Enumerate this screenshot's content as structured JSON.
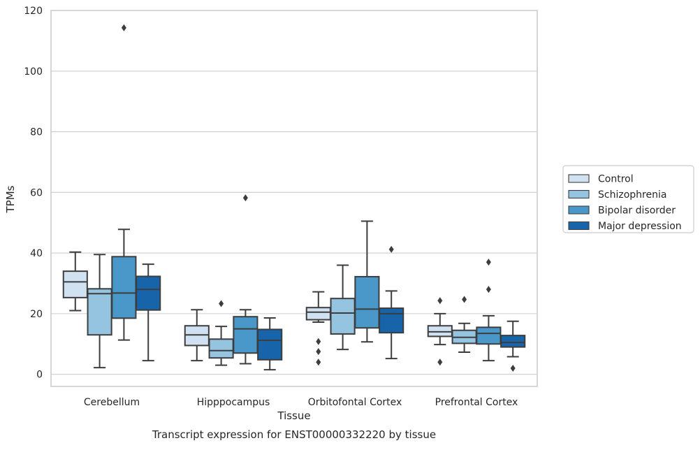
{
  "chart_data": {
    "type": "box",
    "title": "",
    "caption": "Transcript expression for ENST00000332220 by tissue",
    "xlabel": "Tissue",
    "ylabel": "TPMs",
    "ylim": [
      -4,
      120
    ],
    "yticks": [
      0,
      20,
      40,
      60,
      80,
      100,
      120
    ],
    "grid": "horizontal",
    "legend_position": "right, outside",
    "categories": [
      "Cerebellum",
      "Hipppocampus",
      "Orbitofontal Cortex",
      "Prefrontal Cortex"
    ],
    "series": [
      {
        "name": "Control",
        "color": "#d0e1f2",
        "boxes": [
          {
            "whislo": 21,
            "q1": 25.3,
            "med": 30.5,
            "q3": 34,
            "whishi": 40.3,
            "fliers": []
          },
          {
            "whislo": 4.5,
            "q1": 9.5,
            "med": 13,
            "q3": 16,
            "whishi": 21.3,
            "fliers": []
          },
          {
            "whislo": 17.2,
            "q1": 18,
            "med": 20.5,
            "q3": 22,
            "whishi": 27.2,
            "fliers": [
              10.8,
              7.5,
              4
            ]
          },
          {
            "whislo": 9.8,
            "q1": 12.5,
            "med": 14,
            "q3": 16,
            "whishi": 20,
            "fliers": [
              24.3,
              4
            ]
          }
        ]
      },
      {
        "name": "Schizophrenia",
        "color": "#94c4df",
        "boxes": [
          {
            "whislo": 2.2,
            "q1": 13,
            "med": 26.6,
            "q3": 28.2,
            "whishi": 39.5,
            "fliers": []
          },
          {
            "whislo": 3,
            "q1": 5.4,
            "med": 7.8,
            "q3": 11.6,
            "whishi": 15.8,
            "fliers": [
              23.3
            ]
          },
          {
            "whislo": 8.2,
            "q1": 13.3,
            "med": 20.2,
            "q3": 25,
            "whishi": 36,
            "fliers": []
          },
          {
            "whislo": 7.3,
            "q1": 10.2,
            "med": 12.2,
            "q3": 14.5,
            "whishi": 16.8,
            "fliers": [
              24.7
            ]
          }
        ]
      },
      {
        "name": "Bipolar disorder",
        "color": "#4a98c9",
        "boxes": [
          {
            "whislo": 11.3,
            "q1": 18.5,
            "med": 26.8,
            "q3": 38.8,
            "whishi": 47.8,
            "fliers": [
              114.3
            ]
          },
          {
            "whislo": 3.5,
            "q1": 7,
            "med": 15,
            "q3": 19,
            "whishi": 21.3,
            "fliers": [
              58.2
            ]
          },
          {
            "whislo": 10.7,
            "q1": 15.3,
            "med": 21.5,
            "q3": 32.2,
            "whishi": 50.5,
            "fliers": []
          },
          {
            "whislo": 4.5,
            "q1": 10,
            "med": 13.5,
            "q3": 15.5,
            "whishi": 19.3,
            "fliers": [
              37,
              28
            ]
          }
        ]
      },
      {
        "name": "Major depression",
        "color": "#1764ab",
        "boxes": [
          {
            "whislo": 4.5,
            "q1": 21.2,
            "med": 28,
            "q3": 32.3,
            "whishi": 36.3,
            "fliers": []
          },
          {
            "whislo": 1.5,
            "q1": 4.8,
            "med": 11.2,
            "q3": 14.8,
            "whishi": 18.6,
            "fliers": []
          },
          {
            "whislo": 5.2,
            "q1": 13.7,
            "med": 20,
            "q3": 21.8,
            "whishi": 27.5,
            "fliers": [
              41.2
            ]
          },
          {
            "whislo": 5.8,
            "q1": 9,
            "med": 10.5,
            "q3": 12.8,
            "whishi": 17.5,
            "fliers": [
              2
            ]
          }
        ]
      }
    ]
  }
}
